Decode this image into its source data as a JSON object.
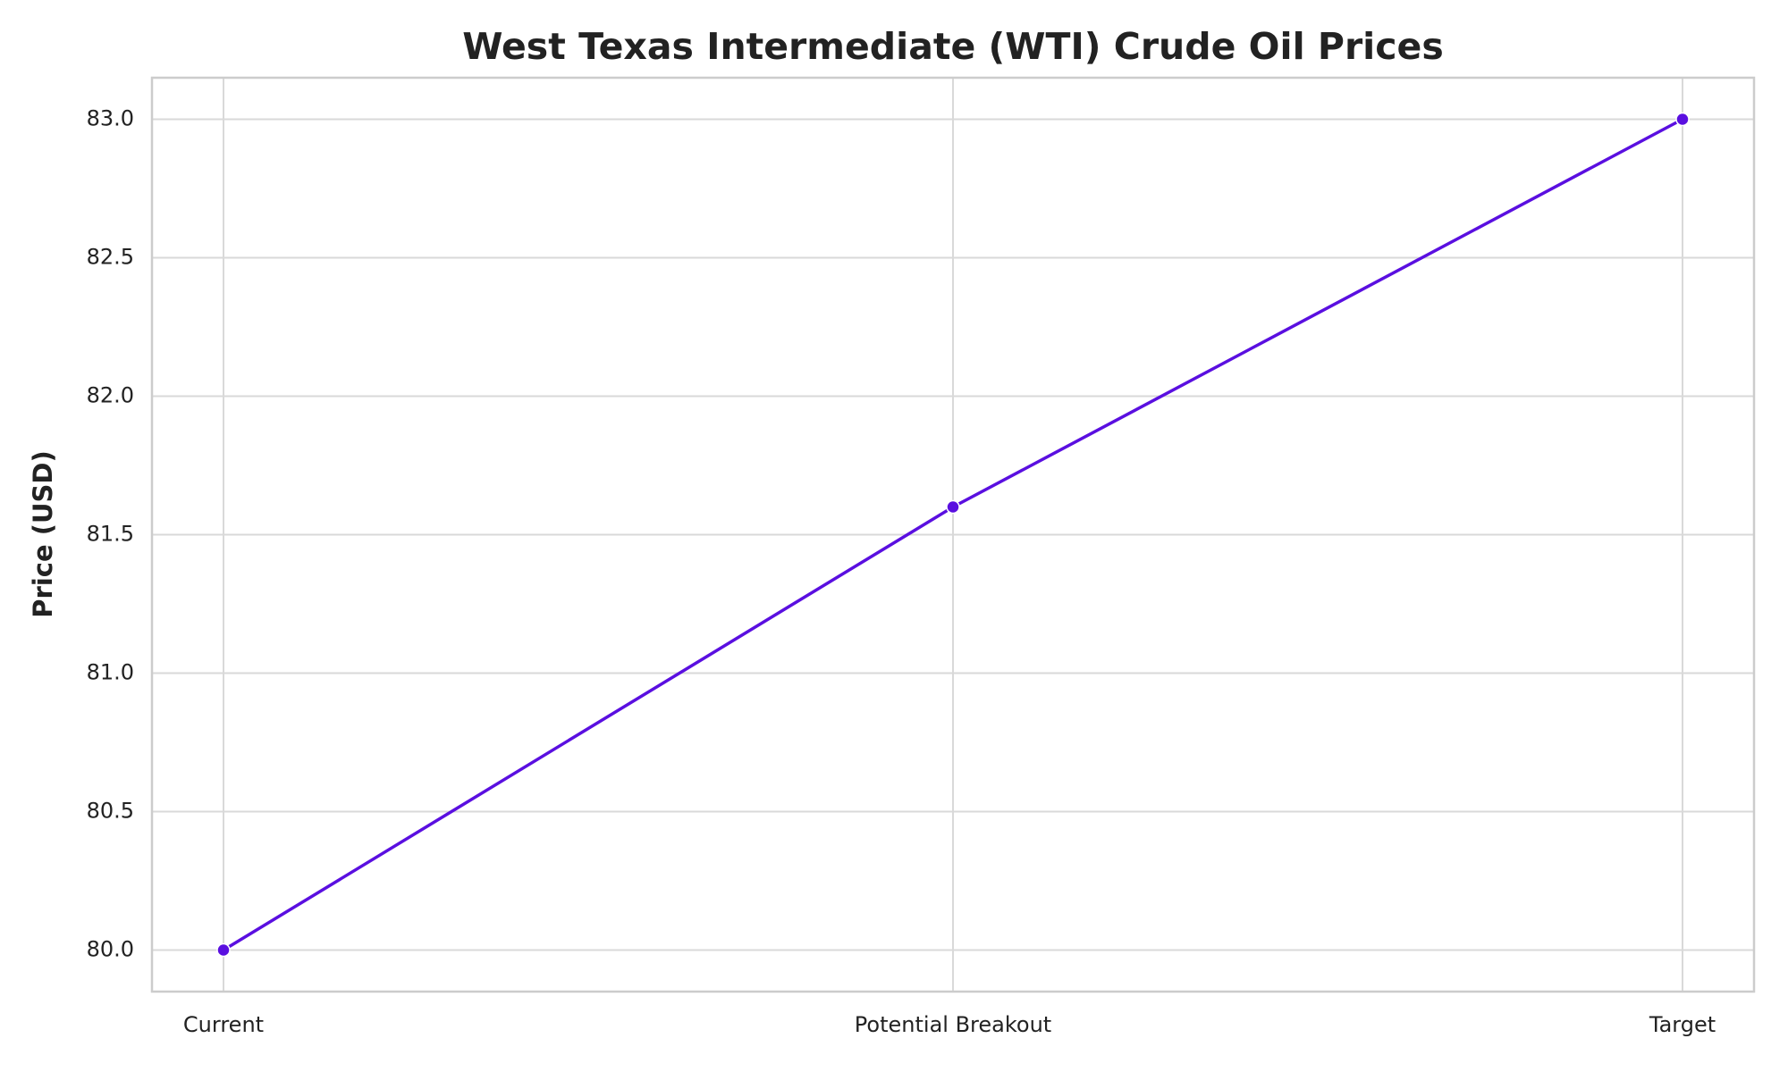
{
  "chart_data": {
    "type": "line",
    "title": "West Texas Intermediate (WTI) Crude Oil Prices",
    "y_label": "Price (USD)",
    "categories": [
      "Current",
      "Potential Breakout",
      "Target"
    ],
    "series": [
      {
        "name": "WTI",
        "color": "#5a0fe0",
        "values": [
          80,
          81.6,
          83
        ]
      }
    ],
    "ylim": [
      79.85,
      83.15
    ],
    "yticks": [
      {
        "value": 80,
        "label": "80.0"
      },
      80.5,
      {
        "value": 81,
        "label": "81.0"
      },
      81.5,
      {
        "value": 82,
        "label": "82.0"
      },
      82.5,
      {
        "value": 83,
        "label": "83.0"
      }
    ],
    "grid": true
  }
}
